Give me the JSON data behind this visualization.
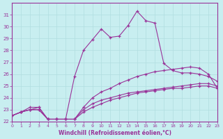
{
  "xlabel": "Windchill (Refroidissement éolien,°C)",
  "xlim": [
    0,
    23
  ],
  "ylim": [
    22,
    32
  ],
  "yticks": [
    22,
    23,
    24,
    25,
    26,
    27,
    28,
    29,
    30,
    31
  ],
  "xticks": [
    0,
    1,
    2,
    3,
    4,
    5,
    6,
    7,
    8,
    9,
    10,
    11,
    12,
    13,
    14,
    15,
    16,
    17,
    18,
    19,
    20,
    21,
    22,
    23
  ],
  "bg_color": "#c8eef0",
  "line_color": "#993399",
  "grid_color": "#b0dde0",
  "series1": [
    22.5,
    22.8,
    23.2,
    23.2,
    22.2,
    22.2,
    22.2,
    25.8,
    28.0,
    28.9,
    29.8,
    29.1,
    29.2,
    30.1,
    31.3,
    30.5,
    30.3,
    26.9,
    26.3,
    26.1,
    26.1,
    26.0,
    25.8,
    25.4
  ],
  "series2": [
    22.5,
    22.8,
    23.0,
    23.2,
    22.2,
    22.2,
    22.2,
    22.2,
    23.2,
    24.0,
    24.5,
    24.8,
    25.2,
    25.5,
    25.8,
    26.0,
    26.2,
    26.3,
    26.4,
    26.5,
    26.6,
    26.5,
    26.0,
    24.8
  ],
  "series3": [
    22.5,
    22.8,
    23.0,
    23.0,
    22.2,
    22.2,
    22.2,
    22.2,
    22.8,
    23.2,
    23.5,
    23.8,
    24.0,
    24.2,
    24.4,
    24.5,
    24.6,
    24.7,
    24.8,
    24.8,
    24.9,
    25.0,
    25.0,
    24.8
  ],
  "series4": [
    22.5,
    22.8,
    23.0,
    23.0,
    22.2,
    22.2,
    22.2,
    22.2,
    23.0,
    23.5,
    23.8,
    24.0,
    24.2,
    24.4,
    24.5,
    24.6,
    24.7,
    24.8,
    24.9,
    25.0,
    25.1,
    25.2,
    25.2,
    25.0
  ]
}
